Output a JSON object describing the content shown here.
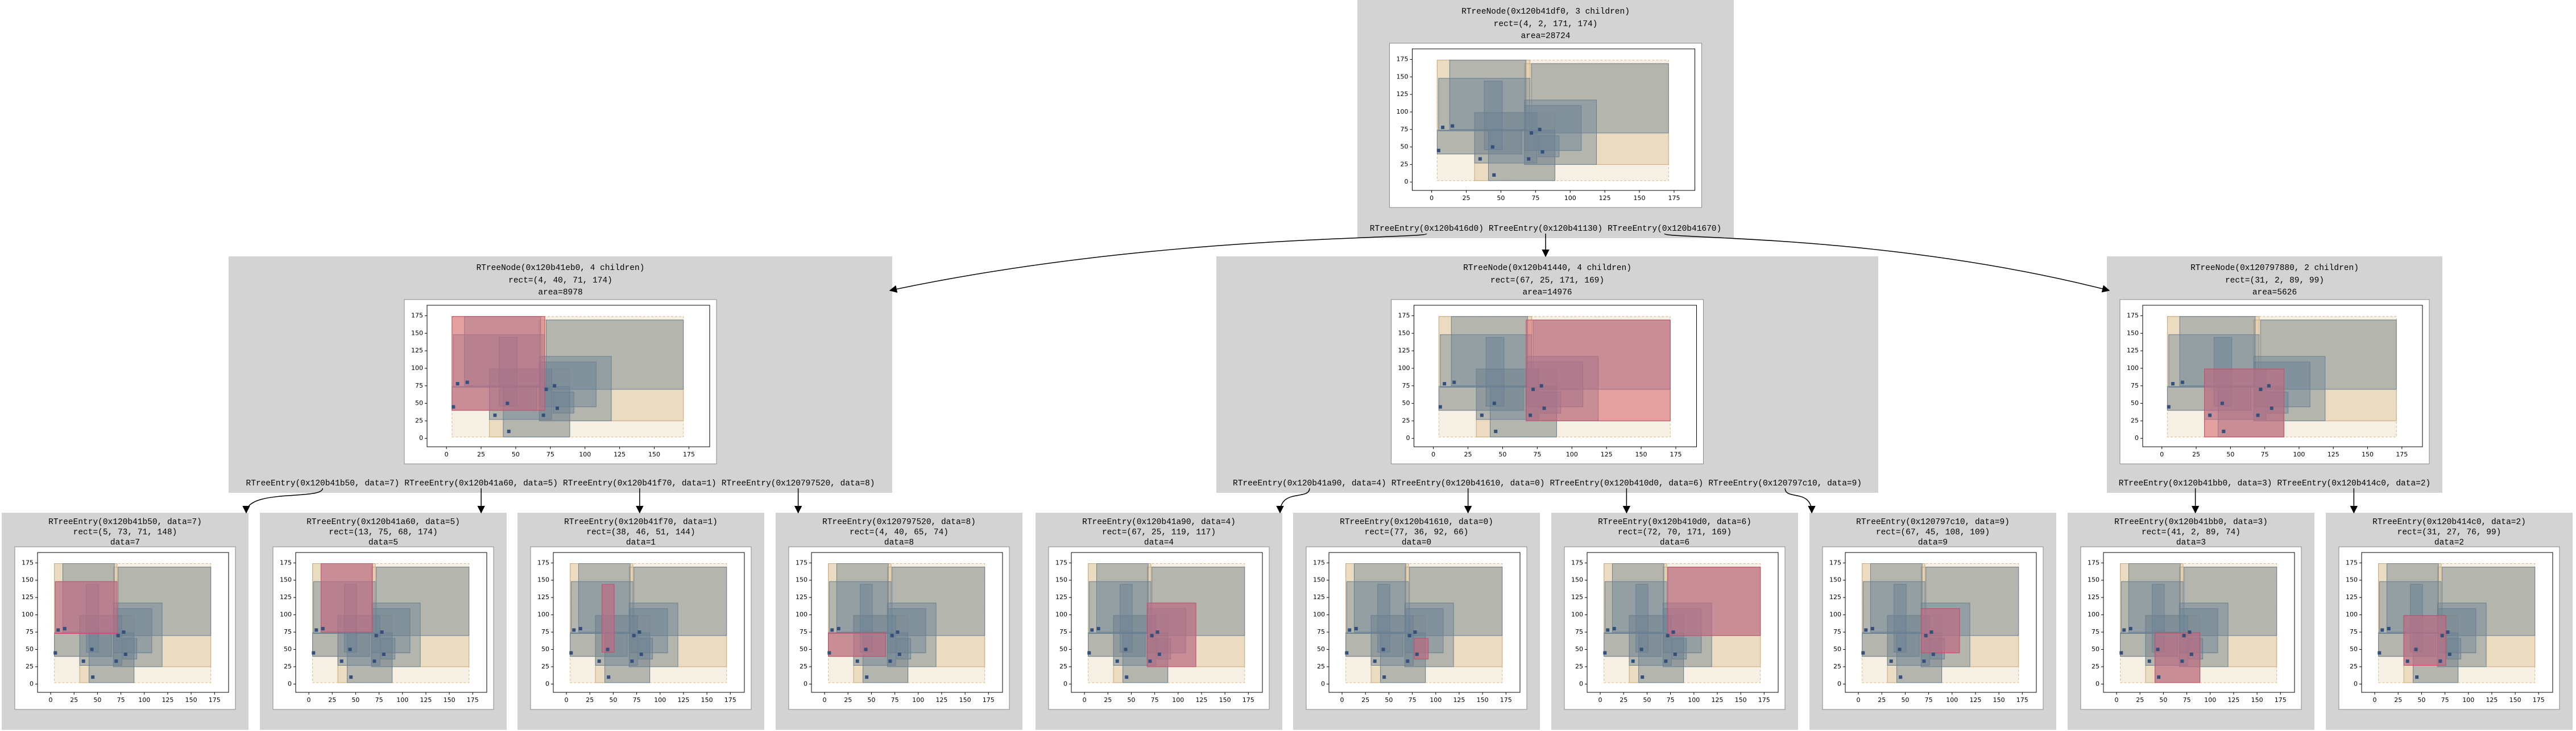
{
  "axes": {
    "xlim": [
      -14,
      190
    ],
    "ylim": [
      -12,
      190
    ],
    "xticks": [
      0,
      25,
      50,
      75,
      100,
      125,
      150,
      175
    ],
    "yticks": [
      0,
      25,
      50,
      75,
      100,
      125,
      150,
      175
    ]
  },
  "points": [
    [
      5,
      45
    ],
    [
      8,
      78
    ],
    [
      15,
      80
    ],
    [
      35,
      33
    ],
    [
      45,
      10
    ],
    [
      44,
      50
    ],
    [
      70,
      33
    ],
    [
      72,
      70
    ],
    [
      78,
      75
    ],
    [
      80,
      43
    ]
  ],
  "root": {
    "title": "RTreeNode(0x120b41df0, 3 children)",
    "rect_label": "rect=(4, 2, 171, 174)",
    "area_label": "area=28724",
    "entries": [
      {
        "label": "RTreeEntry(0x120b416d0)",
        "child": {
          "title": "RTreeNode(0x120b41eb0, 4 children)",
          "rect_label": "rect=(4, 40, 71, 174)",
          "area_label": "area=8978",
          "entries": [
            {
              "label": "RTreeEntry(0x120b41b50, data=7)",
              "child": {
                "title": "RTreeEntry(0x120b41b50, data=7)",
                "rect_label": "rect=(5, 73, 71, 148)",
                "data_label": "data=7"
              }
            },
            {
              "label": "RTreeEntry(0x120b41a60, data=5)",
              "child": {
                "title": "RTreeEntry(0x120b41a60, data=5)",
                "rect_label": "rect=(13, 75, 68, 174)",
                "data_label": "data=5"
              }
            },
            {
              "label": "RTreeEntry(0x120b41f70, data=1)",
              "child": {
                "title": "RTreeEntry(0x120b41f70, data=1)",
                "rect_label": "rect=(38, 46, 51, 144)",
                "data_label": "data=1"
              }
            },
            {
              "label": "RTreeEntry(0x120797520, data=8)",
              "child": {
                "title": "RTreeEntry(0x120797520, data=8)",
                "rect_label": "rect=(4, 40, 65, 74)",
                "data_label": "data=8"
              }
            }
          ]
        }
      },
      {
        "label": "RTreeEntry(0x120b41130)",
        "child": {
          "title": "RTreeNode(0x120b41440, 4 children)",
          "rect_label": "rect=(67, 25, 171, 169)",
          "area_label": "area=14976",
          "entries": [
            {
              "label": "RTreeEntry(0x120b41a90, data=4)",
              "child": {
                "title": "RTreeEntry(0x120b41a90, data=4)",
                "rect_label": "rect=(67, 25, 119, 117)",
                "data_label": "data=4"
              }
            },
            {
              "label": "RTreeEntry(0x120b41610, data=0)",
              "child": {
                "title": "RTreeEntry(0x120b41610, data=0)",
                "rect_label": "rect=(77, 36, 92, 66)",
                "data_label": "data=0"
              }
            },
            {
              "label": "RTreeEntry(0x120b410d0, data=6)",
              "child": {
                "title": "RTreeEntry(0x120b410d0, data=6)",
                "rect_label": "rect=(72, 70, 171, 169)",
                "data_label": "data=6"
              }
            },
            {
              "label": "RTreeEntry(0x120797c10, data=9)",
              "child": {
                "title": "RTreeEntry(0x120797c10, data=9)",
                "rect_label": "rect=(67, 45, 108, 109)",
                "data_label": "data=9"
              }
            }
          ]
        }
      },
      {
        "label": "RTreeEntry(0x120b41670)",
        "child": {
          "title": "RTreeNode(0x120797880, 2 children)",
          "rect_label": "rect=(31, 2, 89, 99)",
          "area_label": "area=5626",
          "entries": [
            {
              "label": "RTreeEntry(0x120b41bb0, data=3)",
              "child": {
                "title": "RTreeEntry(0x120b41bb0, data=3)",
                "rect_label": "rect=(41, 2, 89, 74)",
                "data_label": "data=3"
              }
            },
            {
              "label": "RTreeEntry(0x120b414c0, data=2)",
              "child": {
                "title": "RTreeEntry(0x120b414c0, data=2)",
                "rect_label": "rect=(31, 27, 76, 99)",
                "data_label": "data=2"
              }
            }
          ]
        }
      }
    ]
  }
}
